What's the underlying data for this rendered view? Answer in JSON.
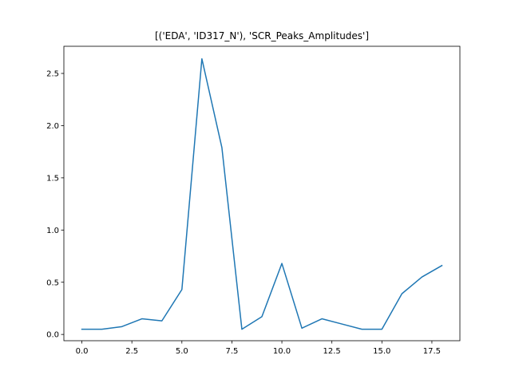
{
  "chart_data": {
    "type": "line",
    "title": "[('EDA', 'ID317_N'), 'SCR_Peaks_Amplitudes']",
    "xlabel": "",
    "ylabel": "",
    "xlim": [
      -0.9,
      18.9
    ],
    "ylim": [
      -0.06,
      2.76
    ],
    "grid": false,
    "legend": "none",
    "x_ticks": [
      0.0,
      2.5,
      5.0,
      7.5,
      10.0,
      12.5,
      15.0,
      17.5
    ],
    "x_tick_labels": [
      "0.0",
      "2.5",
      "5.0",
      "7.5",
      "10.0",
      "12.5",
      "15.0",
      "17.5"
    ],
    "y_ticks": [
      0.0,
      0.5,
      1.0,
      1.5,
      2.0,
      2.5
    ],
    "y_tick_labels": [
      "0.0",
      "0.5",
      "1.0",
      "1.5",
      "2.0",
      "2.5"
    ],
    "series": [
      {
        "color": "#1f77b4",
        "x": [
          0,
          1,
          2,
          3,
          4,
          5,
          6,
          7,
          8,
          9,
          10,
          11,
          12,
          13,
          14,
          15,
          16,
          17,
          18
        ],
        "y": [
          0.05,
          0.05,
          0.075,
          0.15,
          0.13,
          0.43,
          2.64,
          1.79,
          0.05,
          0.17,
          0.68,
          0.06,
          0.15,
          0.1,
          0.05,
          0.05,
          0.39,
          0.55,
          0.66
        ]
      }
    ]
  }
}
